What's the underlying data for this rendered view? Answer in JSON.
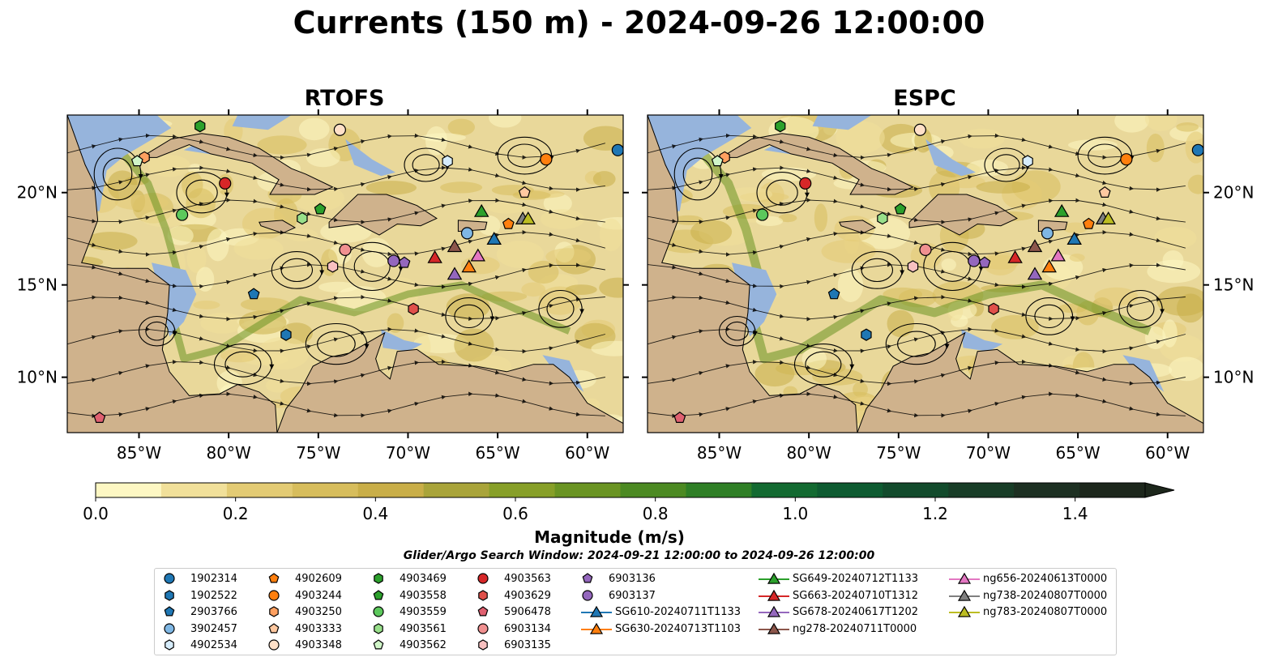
{
  "title": "Currents (150 m) - 2024-09-26 12:00:00",
  "panels": [
    {
      "title": "RTOFS"
    },
    {
      "title": "ESPC"
    }
  ],
  "lon_ticks": [
    "85°W",
    "80°W",
    "75°W",
    "70°W",
    "65°W",
    "60°W"
  ],
  "lat_ticks": [
    "20°N",
    "15°N",
    "10°N"
  ],
  "colorbar": {
    "label": "Magnitude (m/s)",
    "ticks": [
      "0.0",
      "0.2",
      "0.4",
      "0.6",
      "0.8",
      "1.0",
      "1.2",
      "1.4"
    ],
    "colors": [
      "#fdf7c3",
      "#f1e09a",
      "#e3cb74",
      "#d7bd5c",
      "#c9ae48",
      "#a9a43a",
      "#879f28",
      "#6a9423",
      "#4c8a22",
      "#2f7f26",
      "#136a31",
      "#0e5b31",
      "#124b2c",
      "#183d27",
      "#1d3022",
      "#1d271c"
    ]
  },
  "search_window": "Glider/Argo Search Window: 2024-09-21 12:00:00 to 2024-09-26 12:00:00",
  "chart_data": {
    "type": "map",
    "variable": "Current magnitude (m/s)",
    "depth": "150 m",
    "time": "2024-09-26 12:00:00",
    "lon_range": [
      -89,
      -58
    ],
    "lat_range": [
      7.0,
      24.2
    ],
    "cmap_range": [
      0,
      1.5
    ],
    "panels": [
      "RTOFS",
      "ESPC"
    ],
    "platforms": [
      {
        "id": "1902314",
        "kind": "argo",
        "shape": "circle",
        "color": "#1f77b4",
        "lon": -58.3,
        "lat": 22.3
      },
      {
        "id": "1902522",
        "kind": "argo",
        "shape": "hexagon",
        "color": "#1f77b4",
        "lon": -76.8,
        "lat": 12.3
      },
      {
        "id": "2903766",
        "kind": "argo",
        "shape": "pentagon",
        "color": "#1f77b4",
        "lon": -78.6,
        "lat": 14.5
      },
      {
        "id": "3902457",
        "kind": "argo",
        "shape": "circle",
        "color": "#7fb7e4",
        "lon": -66.7,
        "lat": 17.8
      },
      {
        "id": "4902534",
        "kind": "argo",
        "shape": "hexagon",
        "color": "#d6ecfb",
        "lon": -67.8,
        "lat": 21.7
      },
      {
        "id": "4902609",
        "kind": "argo",
        "shape": "pentagon",
        "color": "#ff7f0e",
        "lon": -64.4,
        "lat": 18.3
      },
      {
        "id": "4903244",
        "kind": "argo",
        "shape": "circle",
        "color": "#ff7f0e",
        "lon": -62.3,
        "lat": 21.8
      },
      {
        "id": "4903250",
        "kind": "argo",
        "shape": "hexagon",
        "color": "#ffa060",
        "lon": -84.7,
        "lat": 21.9
      },
      {
        "id": "4903333",
        "kind": "argo",
        "shape": "pentagon",
        "color": "#ffc8a0",
        "lon": -63.5,
        "lat": 20.0
      },
      {
        "id": "4903348",
        "kind": "argo",
        "shape": "circle",
        "color": "#ffe0c8",
        "lon": -73.8,
        "lat": 23.4
      },
      {
        "id": "4903469",
        "kind": "argo",
        "shape": "hexagon",
        "color": "#2ca02c",
        "lon": -81.6,
        "lat": 23.6
      },
      {
        "id": "4903558",
        "kind": "argo",
        "shape": "pentagon",
        "color": "#2ca02c",
        "lon": -74.9,
        "lat": 19.1
      },
      {
        "id": "4903559",
        "kind": "argo",
        "shape": "circle",
        "color": "#5cc85c",
        "lon": -82.6,
        "lat": 18.8
      },
      {
        "id": "4903561",
        "kind": "argo",
        "shape": "hexagon",
        "color": "#98df8a",
        "lon": -75.9,
        "lat": 18.6
      },
      {
        "id": "4903562",
        "kind": "argo",
        "shape": "pentagon",
        "color": "#d0f5c8",
        "lon": -85.1,
        "lat": 21.7
      },
      {
        "id": "4903563",
        "kind": "argo",
        "shape": "circle",
        "color": "#d62728",
        "lon": -80.2,
        "lat": 20.5
      },
      {
        "id": "4903629",
        "kind": "argo",
        "shape": "hexagon",
        "color": "#e0504a",
        "lon": -69.7,
        "lat": 13.7
      },
      {
        "id": "5906478",
        "kind": "argo",
        "shape": "pentagon",
        "color": "#e06070",
        "lon": -87.2,
        "lat": 7.8
      },
      {
        "id": "6903134",
        "kind": "argo",
        "shape": "circle",
        "color": "#f09090",
        "lon": -73.5,
        "lat": 16.9
      },
      {
        "id": "6903135",
        "kind": "argo",
        "shape": "hexagon",
        "color": "#f8c0c0",
        "lon": -74.2,
        "lat": 16.0
      },
      {
        "id": "6903136",
        "kind": "argo",
        "shape": "pentagon",
        "color": "#9467bd",
        "lon": -70.2,
        "lat": 16.2
      },
      {
        "id": "6903137",
        "kind": "argo",
        "shape": "circle",
        "color": "#9467bd",
        "lon": -70.8,
        "lat": 16.3
      },
      {
        "id": "SG610-20240711T1133",
        "kind": "glider",
        "shape": "triangle",
        "color": "#1f77b4",
        "lon": -65.2,
        "lat": 17.5
      },
      {
        "id": "SG630-20240713T1103",
        "kind": "glider",
        "shape": "triangle",
        "color": "#ff7f0e",
        "lon": -66.6,
        "lat": 16.0
      },
      {
        "id": "SG649-20240712T1133",
        "kind": "glider",
        "shape": "triangle",
        "color": "#2ca02c",
        "lon": -65.9,
        "lat": 19.0
      },
      {
        "id": "SG663-20240710T1312",
        "kind": "glider",
        "shape": "triangle",
        "color": "#d62728",
        "lon": -68.5,
        "lat": 16.5
      },
      {
        "id": "SG678-20240617T1202",
        "kind": "glider",
        "shape": "triangle",
        "color": "#9467bd",
        "lon": -67.4,
        "lat": 15.6
      },
      {
        "id": "ng278-20240711T0000",
        "kind": "glider",
        "shape": "triangle",
        "color": "#8c564b",
        "lon": -67.4,
        "lat": 17.1
      },
      {
        "id": "ng656-20240613T0000",
        "kind": "glider",
        "shape": "triangle",
        "color": "#e377c2",
        "lon": -66.1,
        "lat": 16.6
      },
      {
        "id": "ng738-20240807T0000",
        "kind": "glider",
        "shape": "triangle",
        "color": "#7f7f7f",
        "lon": -63.6,
        "lat": 18.6
      },
      {
        "id": "ng783-20240807T0000",
        "kind": "glider",
        "shape": "triangle",
        "color": "#bcbd22",
        "lon": -63.3,
        "lat": 18.6
      }
    ]
  }
}
